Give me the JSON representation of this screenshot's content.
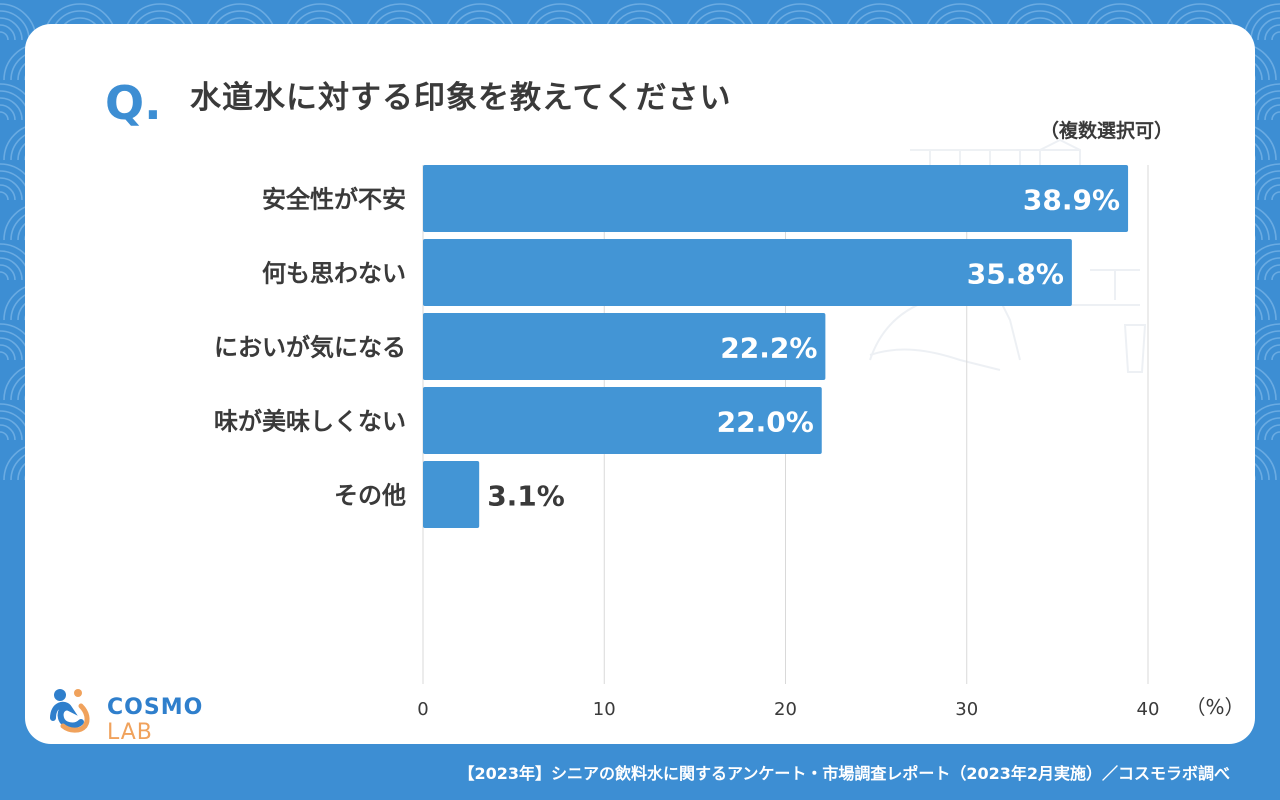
{
  "header": {
    "q_mark": "Q.",
    "question": "水道水に対する印象を教えてください",
    "note": "（複数選択可）"
  },
  "chart_data": {
    "type": "bar",
    "orientation": "horizontal",
    "categories": [
      "安全性が不安",
      "何も思わない",
      "においが気になる",
      "味が美味しくない",
      "その他"
    ],
    "values": [
      38.9,
      35.8,
      22.2,
      22.0,
      3.1
    ],
    "value_labels": [
      "38.9%",
      "35.8%",
      "22.2%",
      "22.0%",
      "3.1%"
    ],
    "x_ticks": [
      "0",
      "10",
      "20",
      "30",
      "40"
    ],
    "x_unit_label": "（%）",
    "xlim": [
      0,
      40
    ],
    "grid": true,
    "bar_color": "#4395d5"
  },
  "logo": {
    "main": "COSMO",
    "accent": "LAB"
  },
  "footer": {
    "source": "【2023年】シニアの飲料水に関するアンケート・市場調査レポート（2023年2月実施）／コスモラボ調べ"
  },
  "colors": {
    "background": "#3d8ed3",
    "card": "#ffffff",
    "text": "#3a3a3a",
    "accent": "#3d8ed3",
    "logo_orange": "#f0a25c"
  }
}
